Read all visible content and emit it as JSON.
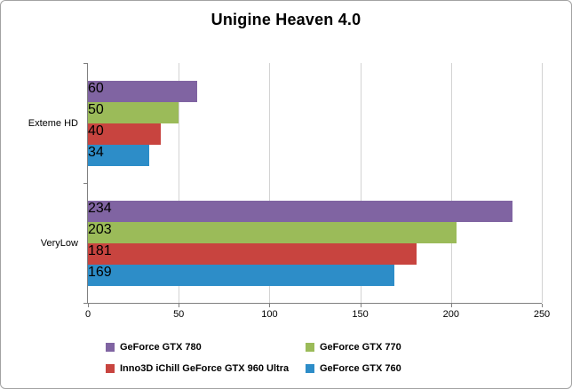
{
  "chart_data": {
    "type": "bar",
    "orientation": "horizontal",
    "title": "Unigine Heaven 4.0",
    "categories": [
      "Exteme HD",
      "VeryLow"
    ],
    "series": [
      {
        "name": "GeForce GTX 780",
        "color": "#8064A2",
        "values": [
          60,
          234
        ]
      },
      {
        "name": "GeForce GTX 770",
        "color": "#9BBB59",
        "values": [
          50,
          203
        ]
      },
      {
        "name": "Inno3D iChill GeForce GTX 960 Ultra",
        "color": "#C8443F",
        "values": [
          40,
          181
        ]
      },
      {
        "name": "GeForce GTX 760",
        "color": "#2D8DC8",
        "values": [
          34,
          169
        ]
      }
    ],
    "x_axis": {
      "min": 0,
      "max": 250,
      "tick_step": 50,
      "ticks": [
        0,
        50,
        100,
        150,
        200,
        250
      ]
    },
    "grid": true,
    "legend_position": "bottom"
  }
}
